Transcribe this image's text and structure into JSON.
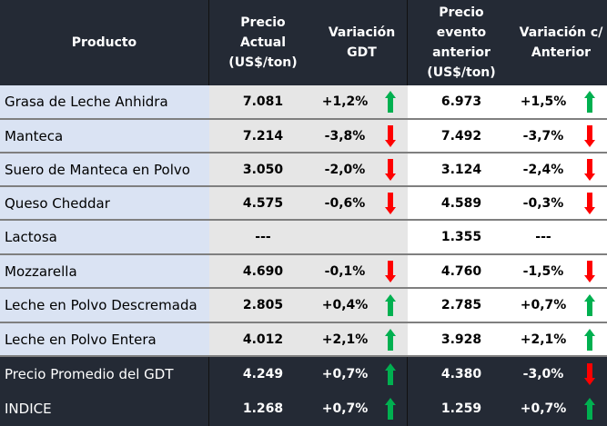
{
  "header": {
    "producto": "Producto",
    "precio_actual_1": "Precio",
    "precio_actual_2": "Actual",
    "precio_actual_3": "(US$/ton)",
    "variacion_gdt_1": "Variación",
    "variacion_gdt_2": "GDT",
    "precio_anterior_1": "Precio",
    "precio_anterior_2": "evento",
    "precio_anterior_3": "anterior",
    "precio_anterior_4": "(US$/ton)",
    "variacion_anterior_1": "Variación c/",
    "variacion_anterior_2": "Anterior"
  },
  "colors": {
    "header_bg": "#242a35",
    "product_bg": "#dae3f3",
    "current_bg": "#e6e6e6",
    "up_arrow": "#00b050",
    "down_arrow": "#ff0000"
  },
  "rows": [
    {
      "producto": "Grasa de Leche Anhidra",
      "precio_actual": "7.081",
      "var_gdt": "+1,2%",
      "dir_gdt": "up",
      "precio_anterior": "6.973",
      "var_anterior": "+1,5%",
      "dir_anterior": "up"
    },
    {
      "producto": "Manteca",
      "precio_actual": "7.214",
      "var_gdt": "-3,8%",
      "dir_gdt": "down",
      "precio_anterior": "7.492",
      "var_anterior": "-3,7%",
      "dir_anterior": "down"
    },
    {
      "producto": "Suero de Manteca en Polvo",
      "precio_actual": "3.050",
      "var_gdt": "-2,0%",
      "dir_gdt": "down",
      "precio_anterior": "3.124",
      "var_anterior": "-2,4%",
      "dir_anterior": "down"
    },
    {
      "producto": "Queso Cheddar",
      "precio_actual": "4.575",
      "var_gdt": "-0,6%",
      "dir_gdt": "down",
      "precio_anterior": "4.589",
      "var_anterior": "-0,3%",
      "dir_anterior": "down"
    },
    {
      "producto": "Lactosa",
      "precio_actual": "---",
      "var_gdt": "",
      "dir_gdt": "none",
      "precio_anterior": "1.355",
      "var_anterior": "---",
      "dir_anterior": "none"
    },
    {
      "producto": "Mozzarella",
      "precio_actual": "4.690",
      "var_gdt": "-0,1%",
      "dir_gdt": "down",
      "precio_anterior": "4.760",
      "var_anterior": "-1,5%",
      "dir_anterior": "down"
    },
    {
      "producto": "Leche en Polvo Descremada",
      "precio_actual": "2.805",
      "var_gdt": "+0,4%",
      "dir_gdt": "up",
      "precio_anterior": "2.785",
      "var_anterior": "+0,7%",
      "dir_anterior": "up"
    },
    {
      "producto": "Leche en Polvo Entera",
      "precio_actual": "4.012",
      "var_gdt": "+2,1%",
      "dir_gdt": "up",
      "precio_anterior": "3.928",
      "var_anterior": "+2,1%",
      "dir_anterior": "up"
    }
  ],
  "footer": [
    {
      "producto": "Precio Promedio del GDT",
      "precio_actual": "4.249",
      "var_gdt": "+0,7%",
      "dir_gdt": "up",
      "precio_anterior": "4.380",
      "var_anterior": "-3,0%",
      "dir_anterior": "down"
    },
    {
      "producto": "INDICE",
      "precio_actual": "1.268",
      "var_gdt": "+0,7%",
      "dir_gdt": "up",
      "precio_anterior": "1.259",
      "var_anterior": "+0,7%",
      "dir_anterior": "up"
    }
  ]
}
